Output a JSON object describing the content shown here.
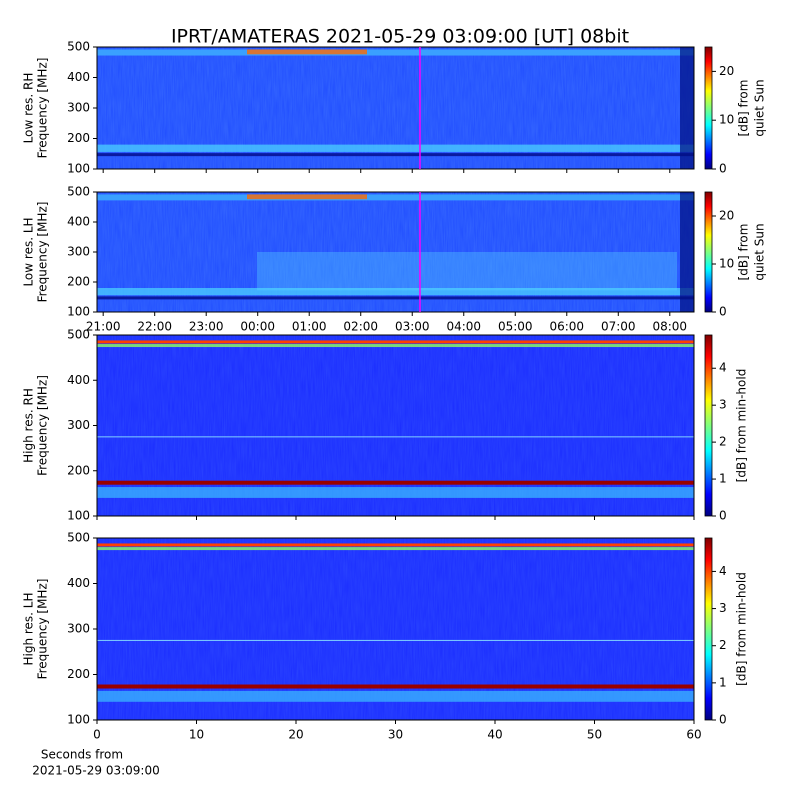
{
  "title": "IPRT/AMATERAS 2021-05-29 03:09:00 [UT]   08bit",
  "chart_data": [
    {
      "type": "heatmap",
      "ylabel": [
        "Low res. RH",
        "Frequency [MHz]"
      ],
      "ylim": [
        100,
        500
      ],
      "yticks": [
        100,
        200,
        300,
        400,
        500
      ],
      "xlim": [
        20.88,
        32.47
      ],
      "vline": 27.15,
      "vline_color": "#ff00ff",
      "colormap": "jet",
      "colorbar": {
        "label": [
          "[dB] from",
          "quiet Sun"
        ],
        "lim": [
          0,
          25
        ],
        "ticks": [
          0,
          10,
          20
        ]
      }
    },
    {
      "type": "heatmap",
      "ylabel": [
        "Low res. LH",
        "Frequency [MHz]"
      ],
      "ylim": [
        100,
        500
      ],
      "yticks": [
        100,
        200,
        300,
        400,
        500
      ],
      "xlim": [
        20.88,
        32.47
      ],
      "vline": 27.15,
      "vline_color": "#ff00ff",
      "colormap": "jet",
      "xticks": [
        {
          "value": 21,
          "label": "21:00"
        },
        {
          "value": 22,
          "label": "22:00"
        },
        {
          "value": 23,
          "label": "23:00"
        },
        {
          "value": 24,
          "label": "00:00"
        },
        {
          "value": 25,
          "label": "01:00"
        },
        {
          "value": 26,
          "label": "02:00"
        },
        {
          "value": 27,
          "label": "03:00"
        },
        {
          "value": 28,
          "label": "04:00"
        },
        {
          "value": 29,
          "label": "05:00"
        },
        {
          "value": 30,
          "label": "06:00"
        },
        {
          "value": 31,
          "label": "07:00"
        },
        {
          "value": 32,
          "label": "08:00"
        }
      ],
      "colorbar": {
        "label": [
          "[dB] from",
          "quiet Sun"
        ],
        "lim": [
          0,
          25
        ],
        "ticks": [
          0,
          10,
          20
        ]
      }
    },
    {
      "type": "heatmap",
      "ylabel": [
        "High res. RH",
        "Frequency [MHz]"
      ],
      "ylim": [
        100,
        500
      ],
      "yticks": [
        100,
        200,
        300,
        400,
        500
      ],
      "xlim": [
        0,
        60
      ],
      "colormap": "jet",
      "colorbar": {
        "label": [
          "[dB] from min-hold"
        ],
        "lim": [
          0,
          4.9
        ],
        "ticks": [
          0,
          1,
          2,
          3,
          4
        ]
      }
    },
    {
      "type": "heatmap",
      "ylabel": [
        "High res. LH",
        "Frequency [MHz]"
      ],
      "ylim": [
        100,
        500
      ],
      "yticks": [
        100,
        200,
        300,
        400,
        500
      ],
      "xlim": [
        0,
        60
      ],
      "xticks": [
        0,
        10,
        20,
        30,
        40,
        50,
        60
      ],
      "xlabel": [
        "Seconds from",
        "2021-05-29 03:09:00"
      ],
      "colormap": "jet",
      "colorbar": {
        "label": [
          "[dB] from min-hold"
        ],
        "lim": [
          0,
          4.9
        ],
        "ticks": [
          0,
          1,
          2,
          3,
          4
        ]
      }
    }
  ]
}
